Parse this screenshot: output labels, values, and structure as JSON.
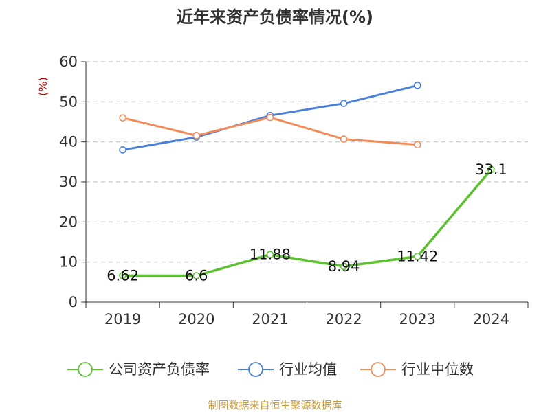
{
  "chart_data": {
    "type": "line",
    "title": "近年来资产负债率情况(%)",
    "ylabel": "(%)",
    "xlabel": "",
    "categories": [
      "2019",
      "2020",
      "2021",
      "2022",
      "2023",
      "2024"
    ],
    "ylim": [
      0,
      60
    ],
    "yticks": [
      0,
      10,
      20,
      30,
      40,
      50,
      60
    ],
    "grid": true,
    "legend_position": "bottom",
    "series": [
      {
        "name": "公司资产负债率",
        "color": "#5bc12f",
        "values": [
          6.62,
          6.6,
          11.88,
          8.94,
          11.42,
          33.1
        ],
        "labels": [
          "6.62",
          "6.6",
          "11.88",
          "8.94",
          "11.42",
          "33.1"
        ]
      },
      {
        "name": "行业均值",
        "color": "#4a7fdb",
        "values": [
          38.0,
          41.2,
          46.6,
          49.6,
          54.1,
          null
        ]
      },
      {
        "name": "行业中位数",
        "color": "#f08c5a",
        "values": [
          46.0,
          41.6,
          46.1,
          40.7,
          39.3,
          null
        ]
      }
    ]
  },
  "source": "制图数据来自恒生聚源数据库"
}
